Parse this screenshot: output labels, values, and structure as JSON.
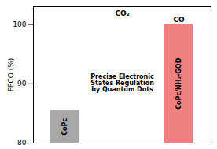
{
  "chart_data": {
    "type": "bar",
    "categories": [
      "CoPc",
      "CoPc/NH₂-GQD"
    ],
    "values": [
      85.5,
      100
    ],
    "colors": [
      "#a8a8a8",
      "#f08080"
    ],
    "ylabel": "FECO (%)",
    "ylim": [
      80,
      103
    ],
    "yticks": [
      80,
      90,
      100
    ],
    "tick_labels": "y",
    "annotations": [
      "CO",
      "CO₂",
      "Precise Electronic\nStates Regulation\nby Quantum Dots"
    ]
  }
}
